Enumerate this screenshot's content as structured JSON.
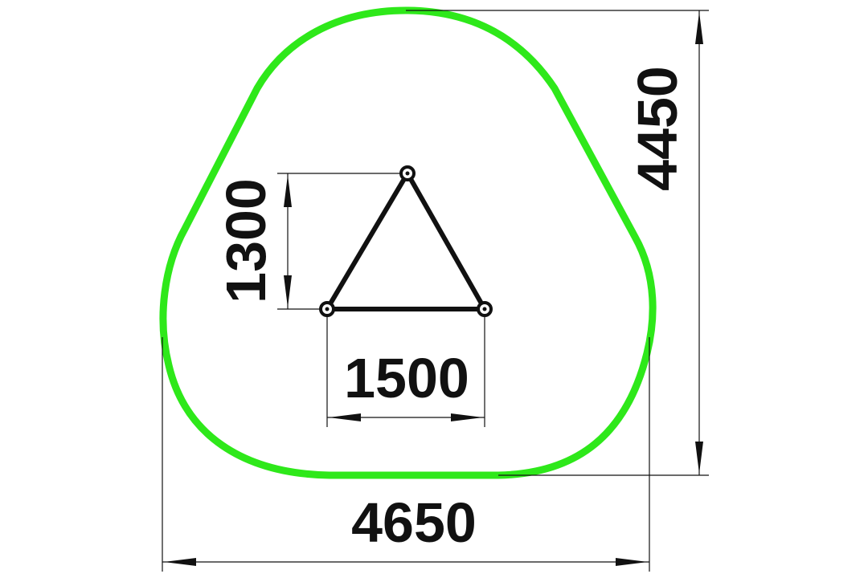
{
  "drawing": {
    "colors": {
      "outline": "#2ee81a",
      "lines": "#111111",
      "background": "#ffffff"
    },
    "dimensions": {
      "overall_width": "4650",
      "overall_height": "4450",
      "frame_width": "1500",
      "frame_height": "1300"
    }
  }
}
